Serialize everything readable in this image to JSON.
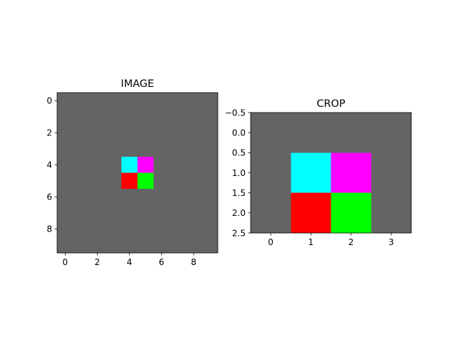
{
  "chart_data": [
    {
      "type": "heatmap",
      "title": "IMAGE",
      "rows": 10,
      "cols": 10,
      "background_color": "#646464",
      "cells": [
        {
          "row": 4,
          "col": 4,
          "color": "#00ffff"
        },
        {
          "row": 4,
          "col": 5,
          "color": "#ff00ff"
        },
        {
          "row": 5,
          "col": 4,
          "color": "#ff0000"
        },
        {
          "row": 5,
          "col": 5,
          "color": "#00ff00"
        }
      ],
      "xlim": [
        -0.5,
        9.5
      ],
      "ylim": [
        9.5,
        -0.5
      ],
      "xticks": [
        0,
        2,
        4,
        6,
        8
      ],
      "xtick_labels": [
        "0",
        "2",
        "4",
        "6",
        "8"
      ],
      "yticks": [
        0,
        2,
        4,
        6,
        8
      ],
      "ytick_labels": [
        "0",
        "2",
        "4",
        "6",
        "8"
      ],
      "grid": false
    },
    {
      "type": "heatmap",
      "title": "CROP",
      "rows": 3,
      "cols": 4,
      "background_color": "#646464",
      "cells": [
        {
          "row": 1,
          "col": 1,
          "color": "#00ffff"
        },
        {
          "row": 1,
          "col": 2,
          "color": "#ff00ff"
        },
        {
          "row": 2,
          "col": 1,
          "color": "#ff0000"
        },
        {
          "row": 2,
          "col": 2,
          "color": "#00ff00"
        }
      ],
      "xlim": [
        -0.5,
        3.5
      ],
      "ylim": [
        2.5,
        -0.5
      ],
      "xticks": [
        0,
        1,
        2,
        3
      ],
      "xtick_labels": [
        "0",
        "1",
        "2",
        "3"
      ],
      "yticks": [
        -0.5,
        0.0,
        0.5,
        1.0,
        1.5,
        2.0,
        2.5
      ],
      "ytick_labels": [
        "−0.5",
        "0.0",
        "0.5",
        "1.0",
        "1.5",
        "2.0",
        "2.5"
      ],
      "grid": false
    }
  ]
}
